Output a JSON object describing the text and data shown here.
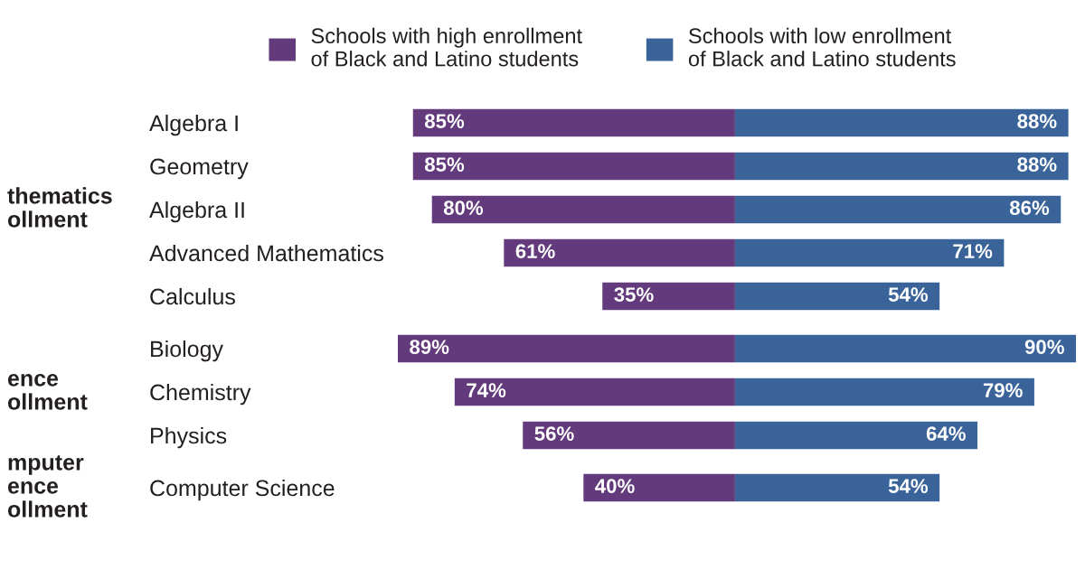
{
  "chart_data": [
    {
      "type": "bar",
      "orientation": "horizontal",
      "ylabel": "thematics\nollment",
      "categories": [
        "Algebra I",
        "Geometry",
        "Algebra II",
        "Advanced Mathematics",
        "Calculus"
      ],
      "series": [
        {
          "name": "Schools with high enrollment\nof Black and Latino students",
          "color": "#633a7c",
          "values": [
            85,
            85,
            80,
            61,
            35
          ],
          "value_labels": [
            "85%",
            "85%",
            "80%",
            "61%",
            "35%"
          ]
        }
      ],
      "tick_labels": "y",
      "legend": "top"
    },
    {
      "type": "bar",
      "orientation": "horizontal",
      "categories": [
        null,
        null,
        null,
        null,
        null
      ],
      "series": [
        {
          "name": "Schools with low enrollment\nof Black and Latino students",
          "color": "#3a6499",
          "values": [
            88,
            88,
            86,
            71,
            54
          ],
          "value_labels": [
            "88%",
            "88%",
            "86%",
            "71%",
            "54%"
          ]
        }
      ],
      "tick_labels": false,
      "legend": "top"
    },
    {
      "type": "bar",
      "orientation": "horizontal",
      "ylabel": "ence\nollment",
      "categories": [
        "Biology",
        "Chemistry",
        "Physics"
      ],
      "series": [
        {
          "color": "#633a7c",
          "values": [
            89,
            74,
            56
          ],
          "value_labels": [
            "89%",
            "74%",
            "56%"
          ]
        }
      ],
      "tick_labels": "y"
    },
    {
      "type": "bar",
      "orientation": "horizontal",
      "categories": [
        null,
        null,
        null
      ],
      "series": [
        {
          "color": "#3a6499",
          "values": [
            90,
            79,
            64
          ],
          "value_labels": [
            "90%",
            "79%",
            "64%"
          ]
        }
      ],
      "tick_labels": false
    },
    {
      "type": "bar",
      "orientation": "horizontal",
      "ylabel": "mputer\nence\nollment",
      "categories": [
        "Computer Science"
      ],
      "series": [
        {
          "color": "#633a7c",
          "values": [
            40
          ],
          "value_labels": [
            "40%"
          ]
        }
      ],
      "tick_labels": "y"
    },
    {
      "type": "bar",
      "orientation": "horizontal",
      "categories": [
        null
      ],
      "series": [
        {
          "color": "#3a6499",
          "values": [
            54
          ],
          "value_labels": [
            "54%"
          ]
        }
      ],
      "tick_labels": false
    }
  ]
}
